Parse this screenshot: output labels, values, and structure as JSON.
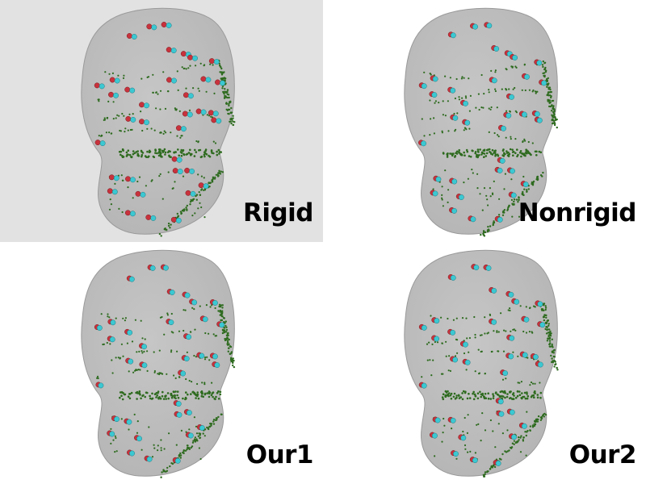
{
  "panels": [
    {
      "label": "Rigid",
      "selected": true
    },
    {
      "label": "Nonrigid",
      "selected": false
    },
    {
      "label": "Our1",
      "selected": false
    },
    {
      "label": "Our2",
      "selected": false
    }
  ],
  "colors": {
    "selected_background": "#e2e2e2",
    "surface_fill": "#b4b4b4",
    "surface_edge": "#9a9a9a",
    "landmark_red": "#c8323c",
    "landmark_cyan": "#3cc8d2",
    "contour_green": "#2e6b1f"
  },
  "icons": {
    "mesh": "tooth-surface-mesh",
    "red_marker": "red-sphere-marker",
    "cyan_marker": "cyan-sphere-marker"
  }
}
